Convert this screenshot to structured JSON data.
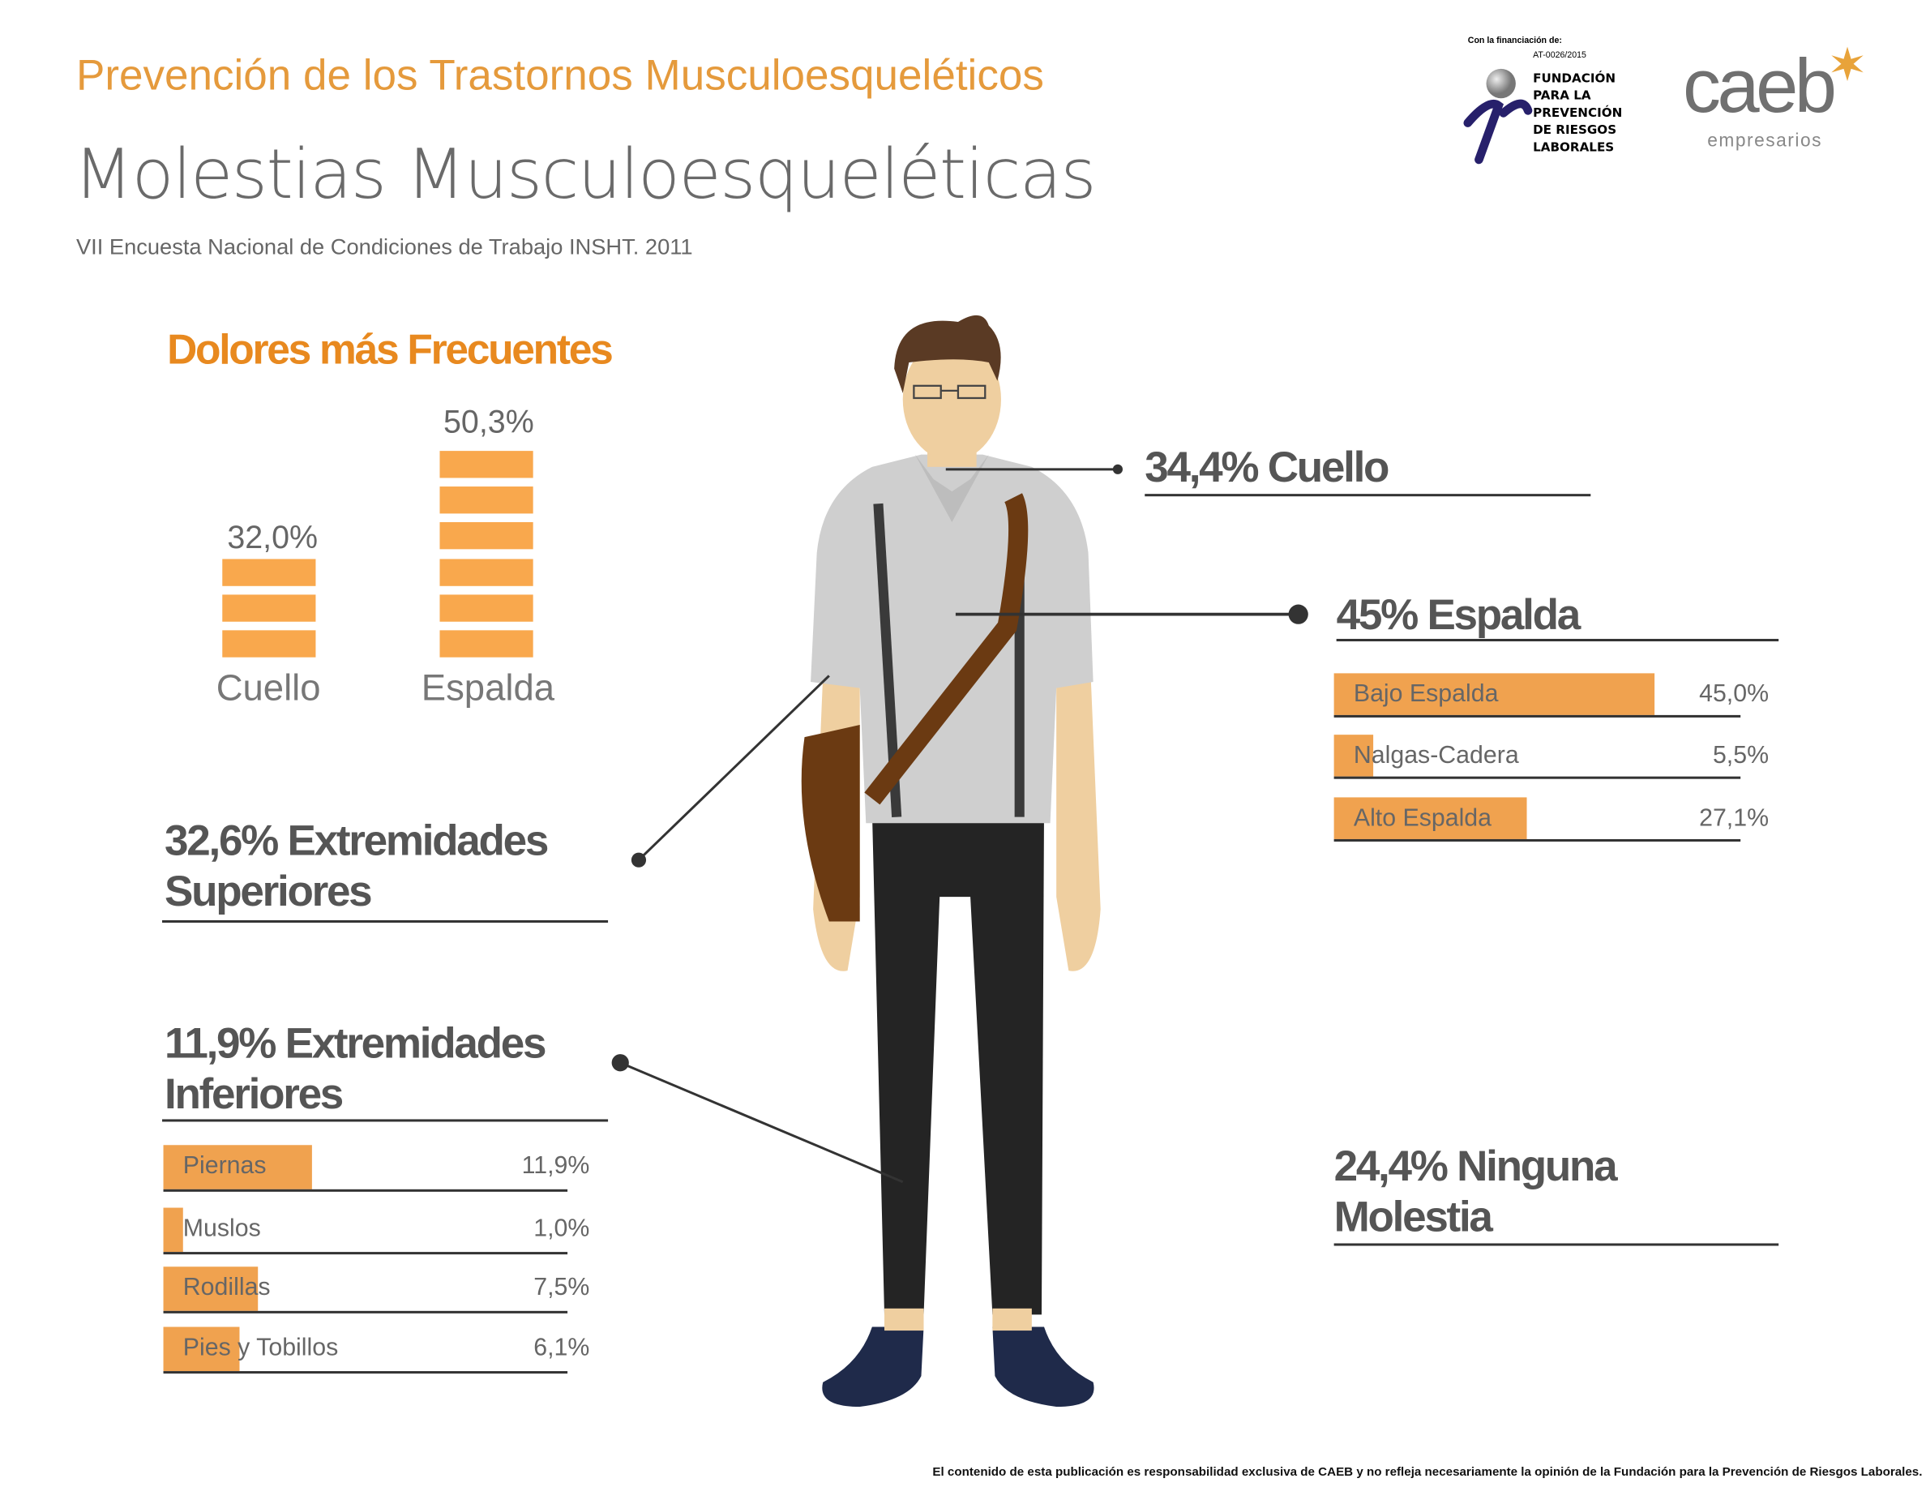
{
  "header": {
    "kicker": "Prevención de los Trastornos Musculoesqueléticos",
    "title": "Molestias Musculoesqueléticas",
    "source": "VII Encuesta Nacional de Condiciones de Trabajo INSHT. 2011"
  },
  "logos": {
    "funding_label": "Con la financiación de:",
    "funding_code": "AT-0026/2015",
    "foundation_lines": [
      "FUNDACIÓN",
      "PARA LA",
      "PREVENCIÓN",
      "DE RIESGOS",
      "LABORALES"
    ],
    "caeb": "caeb",
    "caeb_sub": "empresarios"
  },
  "frequent": {
    "title": "Dolores más Frecuentes",
    "items": [
      {
        "label": "Cuello",
        "value": "32,0%",
        "blocks": 3
      },
      {
        "label": "Espalda",
        "value": "50,3%",
        "blocks": 6
      }
    ]
  },
  "callouts": {
    "neck": "34,4% Cuello",
    "back": "45% Espalda",
    "upper_1": "32,6% Extremidades",
    "upper_2": "Superiores",
    "lower_1": "11,9% Extremidades",
    "lower_2": "Inferiores",
    "none_1": "24,4% Ninguna",
    "none_2": "Molestia"
  },
  "back_breakdown": [
    {
      "label": "Bajo Espalda",
      "value": "45,0%",
      "pct": 45.0
    },
    {
      "label": "Nalgas-Cadera",
      "value": "5,5%",
      "pct": 5.5
    },
    {
      "label": "Alto Espalda",
      "value": "27,1%",
      "pct": 27.1
    }
  ],
  "lower_breakdown": [
    {
      "label": "Piernas",
      "value": "11,9%",
      "pct": 11.9
    },
    {
      "label": "Muslos",
      "value": "1,0%",
      "pct": 1.0
    },
    {
      "label": "Rodillas",
      "value": "7,5%",
      "pct": 7.5
    },
    {
      "label": "Pies y Tobillos",
      "value": "6,1%",
      "pct": 6.1
    }
  ],
  "footer": "El contenido de esta publicación es responsabilidad exclusiva de CAEB y no refleja necesariamente la opinión de la Fundación para la Prevención de Riesgos Laborales.",
  "colors": {
    "orange": "#f9a84d",
    "title_orange": "#e59a3c",
    "text": "#555555"
  }
}
